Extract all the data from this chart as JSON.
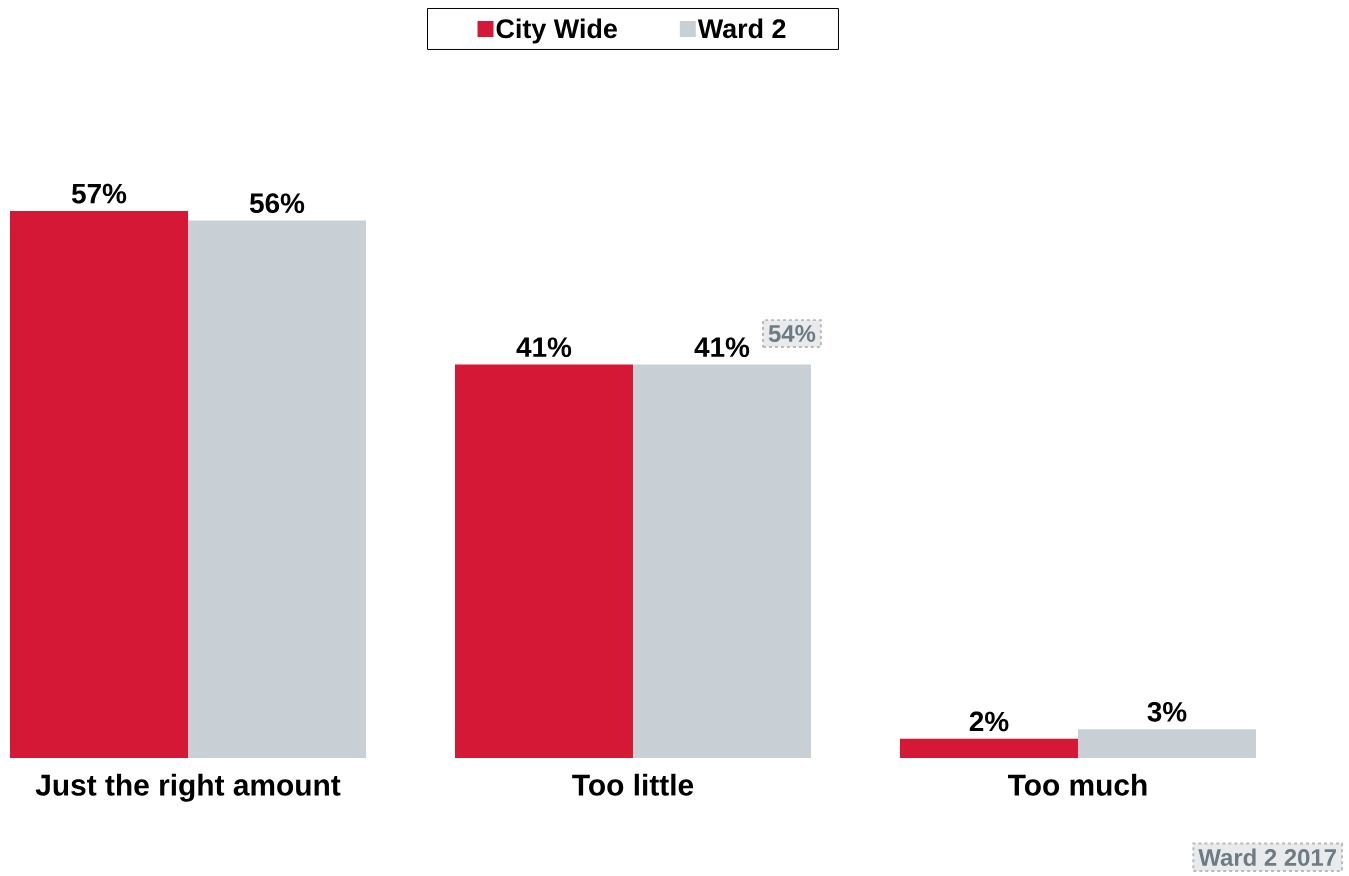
{
  "chart_data": {
    "type": "bar",
    "categories": [
      "Just the right amount",
      "Too little",
      "Too much"
    ],
    "series": [
      {
        "name": "City Wide",
        "color": "#d51835",
        "values": [
          57,
          41,
          2
        ],
        "value_labels": [
          "57%",
          "41%",
          "2%"
        ]
      },
      {
        "name": "Ward 2",
        "color": "#c8d0d6",
        "values": [
          56,
          41,
          3
        ],
        "value_labels": [
          "56%",
          "41%",
          "3%"
        ]
      }
    ],
    "legend": "top",
    "annotations": [
      "54%",
      "Ward 2 2017"
    ]
  }
}
